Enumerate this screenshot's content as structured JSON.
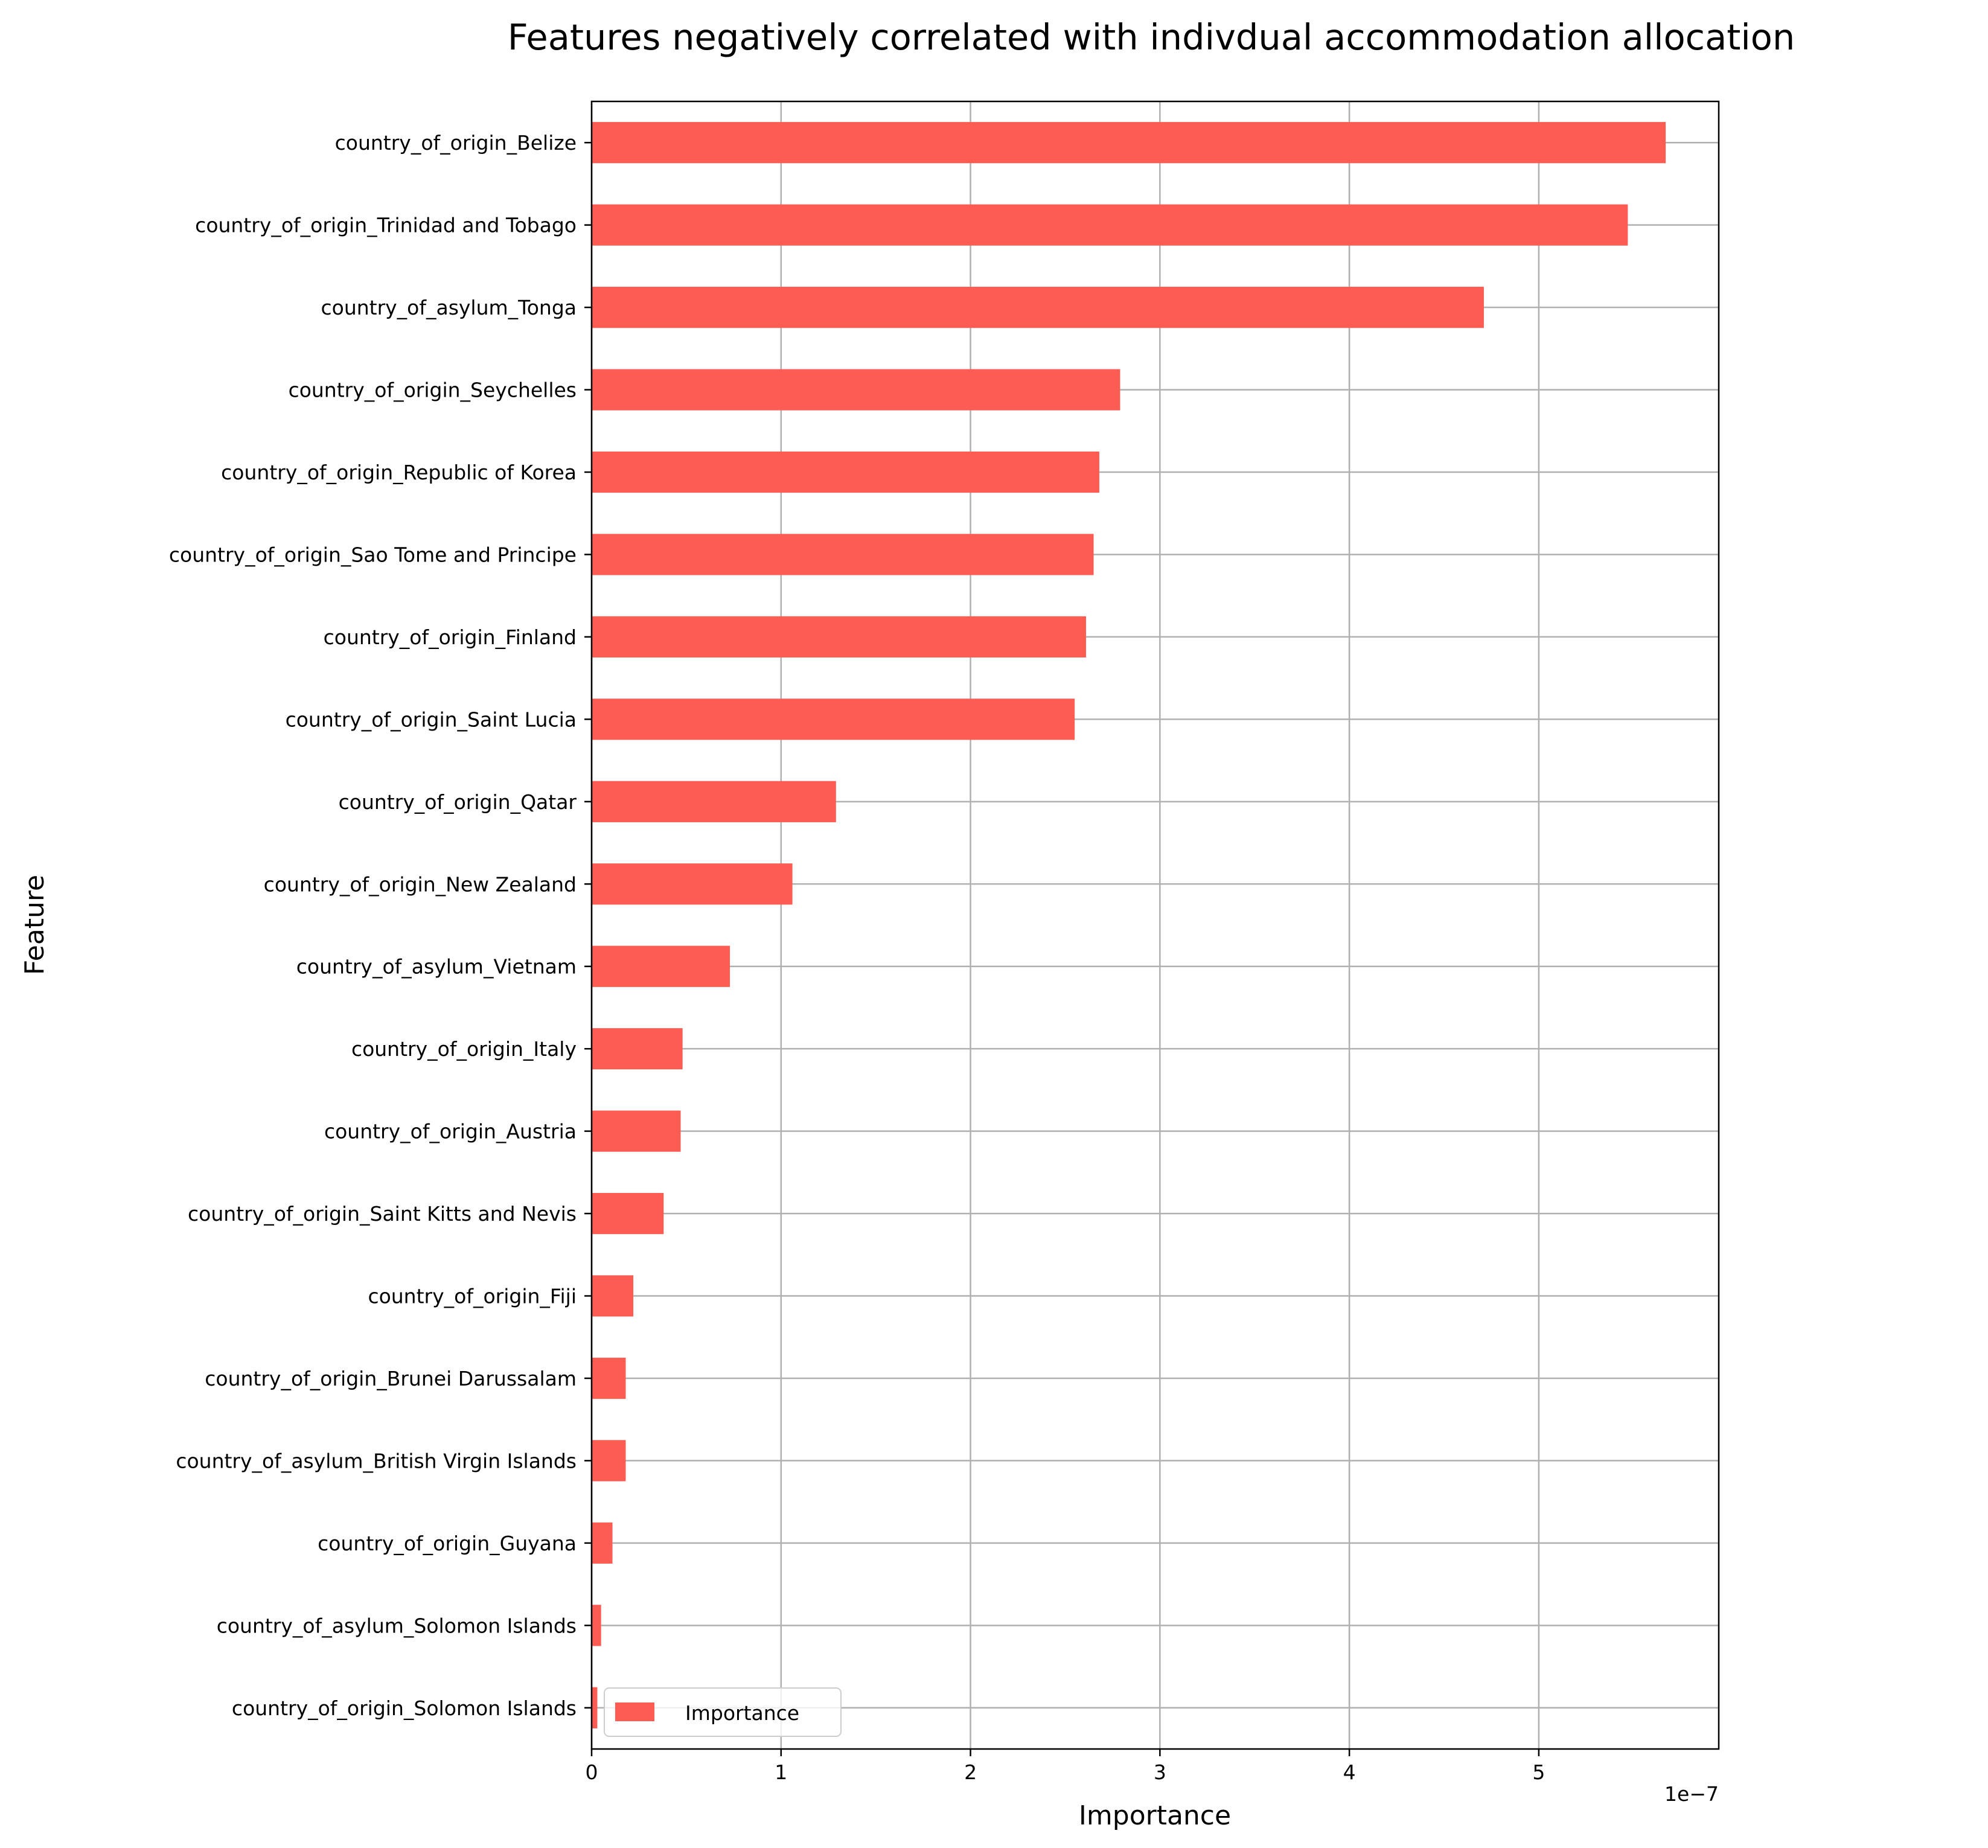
{
  "chart_data": {
    "type": "bar",
    "orientation": "horizontal",
    "title": "Features negatively correlated with indivdual accommodation allocation",
    "xlabel": "Importance",
    "ylabel": "Feature",
    "x_offset_label": "1e−7",
    "x_scale_multiplier": 1e-07,
    "xlim": [
      0,
      5.95
    ],
    "x_ticks": [
      0,
      1,
      2,
      3,
      4,
      5
    ],
    "x_tick_labels": [
      "0",
      "1",
      "2",
      "3",
      "4",
      "5"
    ],
    "grid": true,
    "legend": {
      "position": "lower-left",
      "entries": [
        "Importance"
      ]
    },
    "colors": {
      "bar": "#fd5c52",
      "grid": "#b0b0b0",
      "axis": "#000000"
    },
    "categories": [
      "country_of_origin_Belize",
      "country_of_origin_Trinidad and Tobago",
      "country_of_asylum_Tonga",
      "country_of_origin_Seychelles",
      "country_of_origin_Republic of Korea",
      "country_of_origin_Sao Tome and Principe",
      "country_of_origin_Finland",
      "country_of_origin_Saint Lucia",
      "country_of_origin_Qatar",
      "country_of_origin_New Zealand",
      "country_of_asylum_Vietnam",
      "country_of_origin_Italy",
      "country_of_origin_Austria",
      "country_of_origin_Saint Kitts and Nevis",
      "country_of_origin_Fiji",
      "country_of_origin_Brunei Darussalam",
      "country_of_asylum_British Virgin Islands",
      "country_of_origin_Guyana",
      "country_of_asylum_Solomon Islands",
      "country_of_origin_Solomon Islands"
    ],
    "series": [
      {
        "name": "Importance",
        "values": [
          5.67,
          5.47,
          4.71,
          2.79,
          2.68,
          2.65,
          2.61,
          2.55,
          1.29,
          1.06,
          0.73,
          0.48,
          0.47,
          0.38,
          0.22,
          0.18,
          0.18,
          0.11,
          0.05,
          0.03
        ]
      }
    ]
  }
}
